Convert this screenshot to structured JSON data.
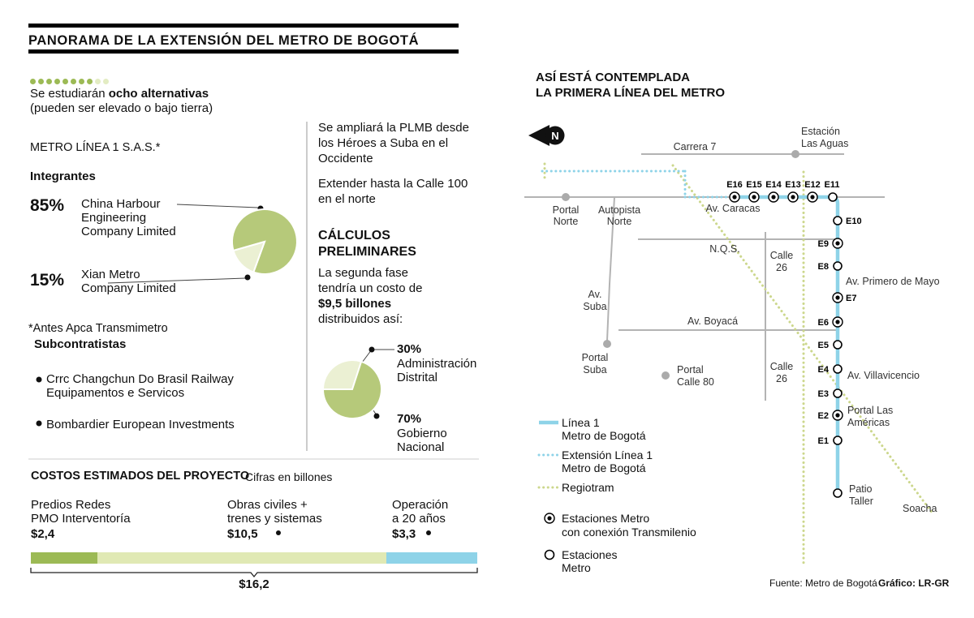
{
  "header": {
    "title": "PANORAMA DE LA EXTENSIÓN DEL METRO DE BOGOTÁ"
  },
  "alternatives": {
    "dots_total": 10,
    "dots_filled": 8,
    "intro_normal": "Se estudiarán ",
    "intro_bold": "ocho alternativas",
    "intro_line2": "(pueden ser elevado o bajo tierra)"
  },
  "company": {
    "name": "METRO LÍNEA 1 S.A.S.*",
    "integrantes_label": "Integrantes",
    "member1_pct": "85%",
    "member1_lines": [
      "China Harbour",
      "Engineering",
      "Company Limited"
    ],
    "member2_pct": "15%",
    "member2_lines": [
      "Xian Metro",
      "Company Limited"
    ],
    "footnote": "*Antes Apca Transmimetro",
    "subcontractors_label": "Subcontratistas",
    "sub1_lines": [
      "Crrc Changchun Do Brasil Railway",
      "Equipamentos e Servicos"
    ],
    "sub2": "Bombardier European Investments"
  },
  "expansion": {
    "p1_lines": [
      "Se ampliará la PLMB desde",
      "los Héroes a Suba en el",
      "Occidente"
    ],
    "p2_lines": [
      "Extender hasta la Calle 100",
      "en el norte"
    ]
  },
  "calculos": {
    "title_lines": [
      "CÁLCULOS",
      "PRELIMINARES"
    ],
    "desc_lines": [
      "La segunda fase",
      "tendría un costo de"
    ],
    "desc_bold": "$9,5 billones",
    "desc_tail": "distribuidos así:",
    "slice1_pct": "30%",
    "slice1_lines": [
      "Administración",
      "Distrital"
    ],
    "slice2_pct": "70%",
    "slice2_lines": [
      "Gobierno",
      "Nacional"
    ]
  },
  "costos": {
    "title": "COSTOS ESTIMADOS DEL PROYECTO",
    "subtitle": "Cifras en billones",
    "seg1_lines": [
      "Predios Redes",
      "PMO Interventoría"
    ],
    "seg1_value": "$2,4",
    "seg2_lines": [
      "Obras civiles +",
      "trenes y sistemas"
    ],
    "seg2_value": "$10,5",
    "seg3_lines": [
      "Operación",
      "a 20 años"
    ],
    "seg3_value": "$3,3",
    "total": "$16,2"
  },
  "map": {
    "title_lines": [
      "ASÍ ESTÁ CONTEMPLADA",
      "LA PRIMERA LÍNEA DEL METRO"
    ],
    "north": "N",
    "labels": {
      "carrera7": "Carrera 7",
      "estacion_las_aguas_1": "Estación",
      "estacion_las_aguas_2": "Las Aguas",
      "portal_norte_1": "Portal",
      "portal_norte_2": "Norte",
      "autopista_norte_1": "Autopista",
      "autopista_norte_2": "Norte",
      "av_caracas": "Av. Caracas",
      "nqs": "N.Q.S.",
      "av_suba_1": "Av.",
      "av_suba_2": "Suba",
      "av_boyaca": "Av. Boyacá",
      "calle26_top_1": "Calle",
      "calle26_top_2": "26",
      "calle26_bottom_1": "Calle",
      "calle26_bottom_2": "26",
      "portal_suba_1": "Portal",
      "portal_suba_2": "Suba",
      "portal_calle80_1": "Portal",
      "portal_calle80_2": "Calle 80",
      "av_primero_mayo": "Av. Primero de Mayo",
      "av_villavicencio": "Av. Villavicencio",
      "portal_americas_1": "Portal Las",
      "portal_americas_2": "Américas",
      "patio_taller_1": "Patio",
      "patio_taller_2": "Taller",
      "soacha": "Soacha"
    },
    "stations": {
      "e1": "E1",
      "e2": "E2",
      "e3": "E3",
      "e4": "E4",
      "e5": "E5",
      "e6": "E6",
      "e7": "E7",
      "e8": "E8",
      "e9": "E9",
      "e10": "E10",
      "e11": "E11",
      "e12": "E12",
      "e13": "E13",
      "e14": "E14",
      "e15": "E15",
      "e16": "E16"
    },
    "legend": {
      "linea1_1": "Línea 1",
      "linea1_2": "Metro de Bogotá",
      "ext_1": "Extensión Línea 1",
      "ext_2": "Metro de Bogotá",
      "regiotram": "Regiotram",
      "est_tm_1": "Estaciones Metro",
      "est_tm_2": "con conexión Transmilenio",
      "est_1": "Estaciones",
      "est_2": "Metro"
    },
    "source": "Fuente: Metro de Bogotá",
    "credit": "Gráfico: LR-GR"
  },
  "chart_data": [
    {
      "type": "pie",
      "name": "integrantes_metro_linea_1",
      "title": "Integrantes Metro Línea 1 S.A.S.",
      "labels": [
        "China Harbour Engineering Company Limited",
        "Xian Metro Company Limited"
      ],
      "values": [
        85,
        15
      ],
      "colors": [
        "#b6c97a",
        "#ebf0d3"
      ]
    },
    {
      "type": "pie",
      "name": "segunda_fase_9_5_billones",
      "title": "Segunda fase: $9,5 billones distribuidos así",
      "labels": [
        "Administración Distrital",
        "Gobierno Nacional"
      ],
      "values": [
        30,
        70
      ],
      "colors": [
        "#ebf0d3",
        "#b6c97a"
      ]
    },
    {
      "type": "bar",
      "name": "costos_estimados",
      "title": "Costos estimados del proyecto (cifras en billones)",
      "categories": [
        "Predios Redes PMO Interventoría",
        "Obras civiles + trenes y sistemas",
        "Operación a 20 años"
      ],
      "values": [
        2.4,
        10.5,
        3.3
      ],
      "total": 16.2,
      "colors": [
        "#9cba55",
        "#e0e9b4",
        "#8ed3e8"
      ]
    }
  ]
}
